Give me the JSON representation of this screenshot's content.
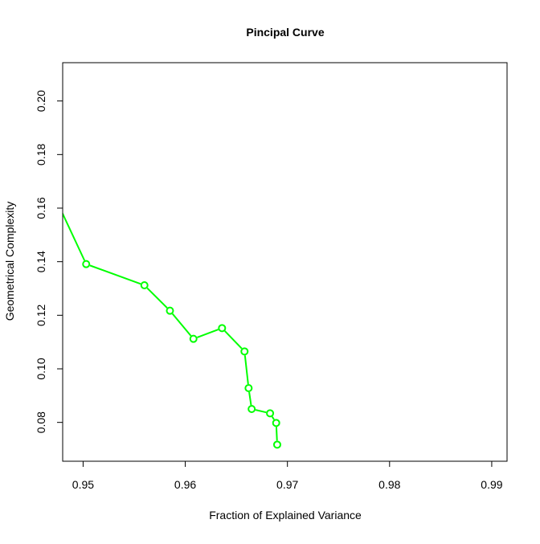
{
  "chart_data": {
    "type": "line",
    "title": "Pincipal Curve",
    "xlabel": "Fraction of Explained Variance",
    "ylabel": "Geometrical Complexity",
    "xlim": [
      0.948,
      0.9915
    ],
    "ylim": [
      0.0655,
      0.2143
    ],
    "x_ticks": [
      {
        "value": 0.95,
        "label": "0.95"
      },
      {
        "value": 0.96,
        "label": "0.96"
      },
      {
        "value": 0.97,
        "label": "0.97"
      },
      {
        "value": 0.98,
        "label": "0.98"
      },
      {
        "value": 0.99,
        "label": "0.99"
      }
    ],
    "y_ticks": [
      {
        "value": 0.08,
        "label": "0.08"
      },
      {
        "value": 0.1,
        "label": "0.10"
      },
      {
        "value": 0.12,
        "label": "0.12"
      },
      {
        "value": 0.14,
        "label": "0.14"
      },
      {
        "value": 0.16,
        "label": "0.16"
      },
      {
        "value": 0.18,
        "label": "0.18"
      },
      {
        "value": 0.2,
        "label": "0.20"
      }
    ],
    "grid": false,
    "series": [
      {
        "color": "#00ff00",
        "markers": "open-circle",
        "points": [
          {
            "x": 0.9463,
            "y": 0.1718,
            "marker": true
          },
          {
            "x": 0.9503,
            "y": 0.1391,
            "marker": true
          },
          {
            "x": 0.956,
            "y": 0.1312,
            "marker": true
          },
          {
            "x": 0.9585,
            "y": 0.1217,
            "marker": true
          },
          {
            "x": 0.9608,
            "y": 0.1112,
            "marker": true
          },
          {
            "x": 0.9636,
            "y": 0.1152,
            "marker": true
          },
          {
            "x": 0.9658,
            "y": 0.1065,
            "marker": true
          },
          {
            "x": 0.9662,
            "y": 0.0928,
            "marker": true
          },
          {
            "x": 0.9665,
            "y": 0.085,
            "marker": true
          },
          {
            "x": 0.9683,
            "y": 0.0834,
            "marker": true
          },
          {
            "x": 0.9689,
            "y": 0.0798,
            "marker": true
          },
          {
            "x": 0.969,
            "y": 0.0717,
            "marker": true
          }
        ]
      }
    ]
  }
}
